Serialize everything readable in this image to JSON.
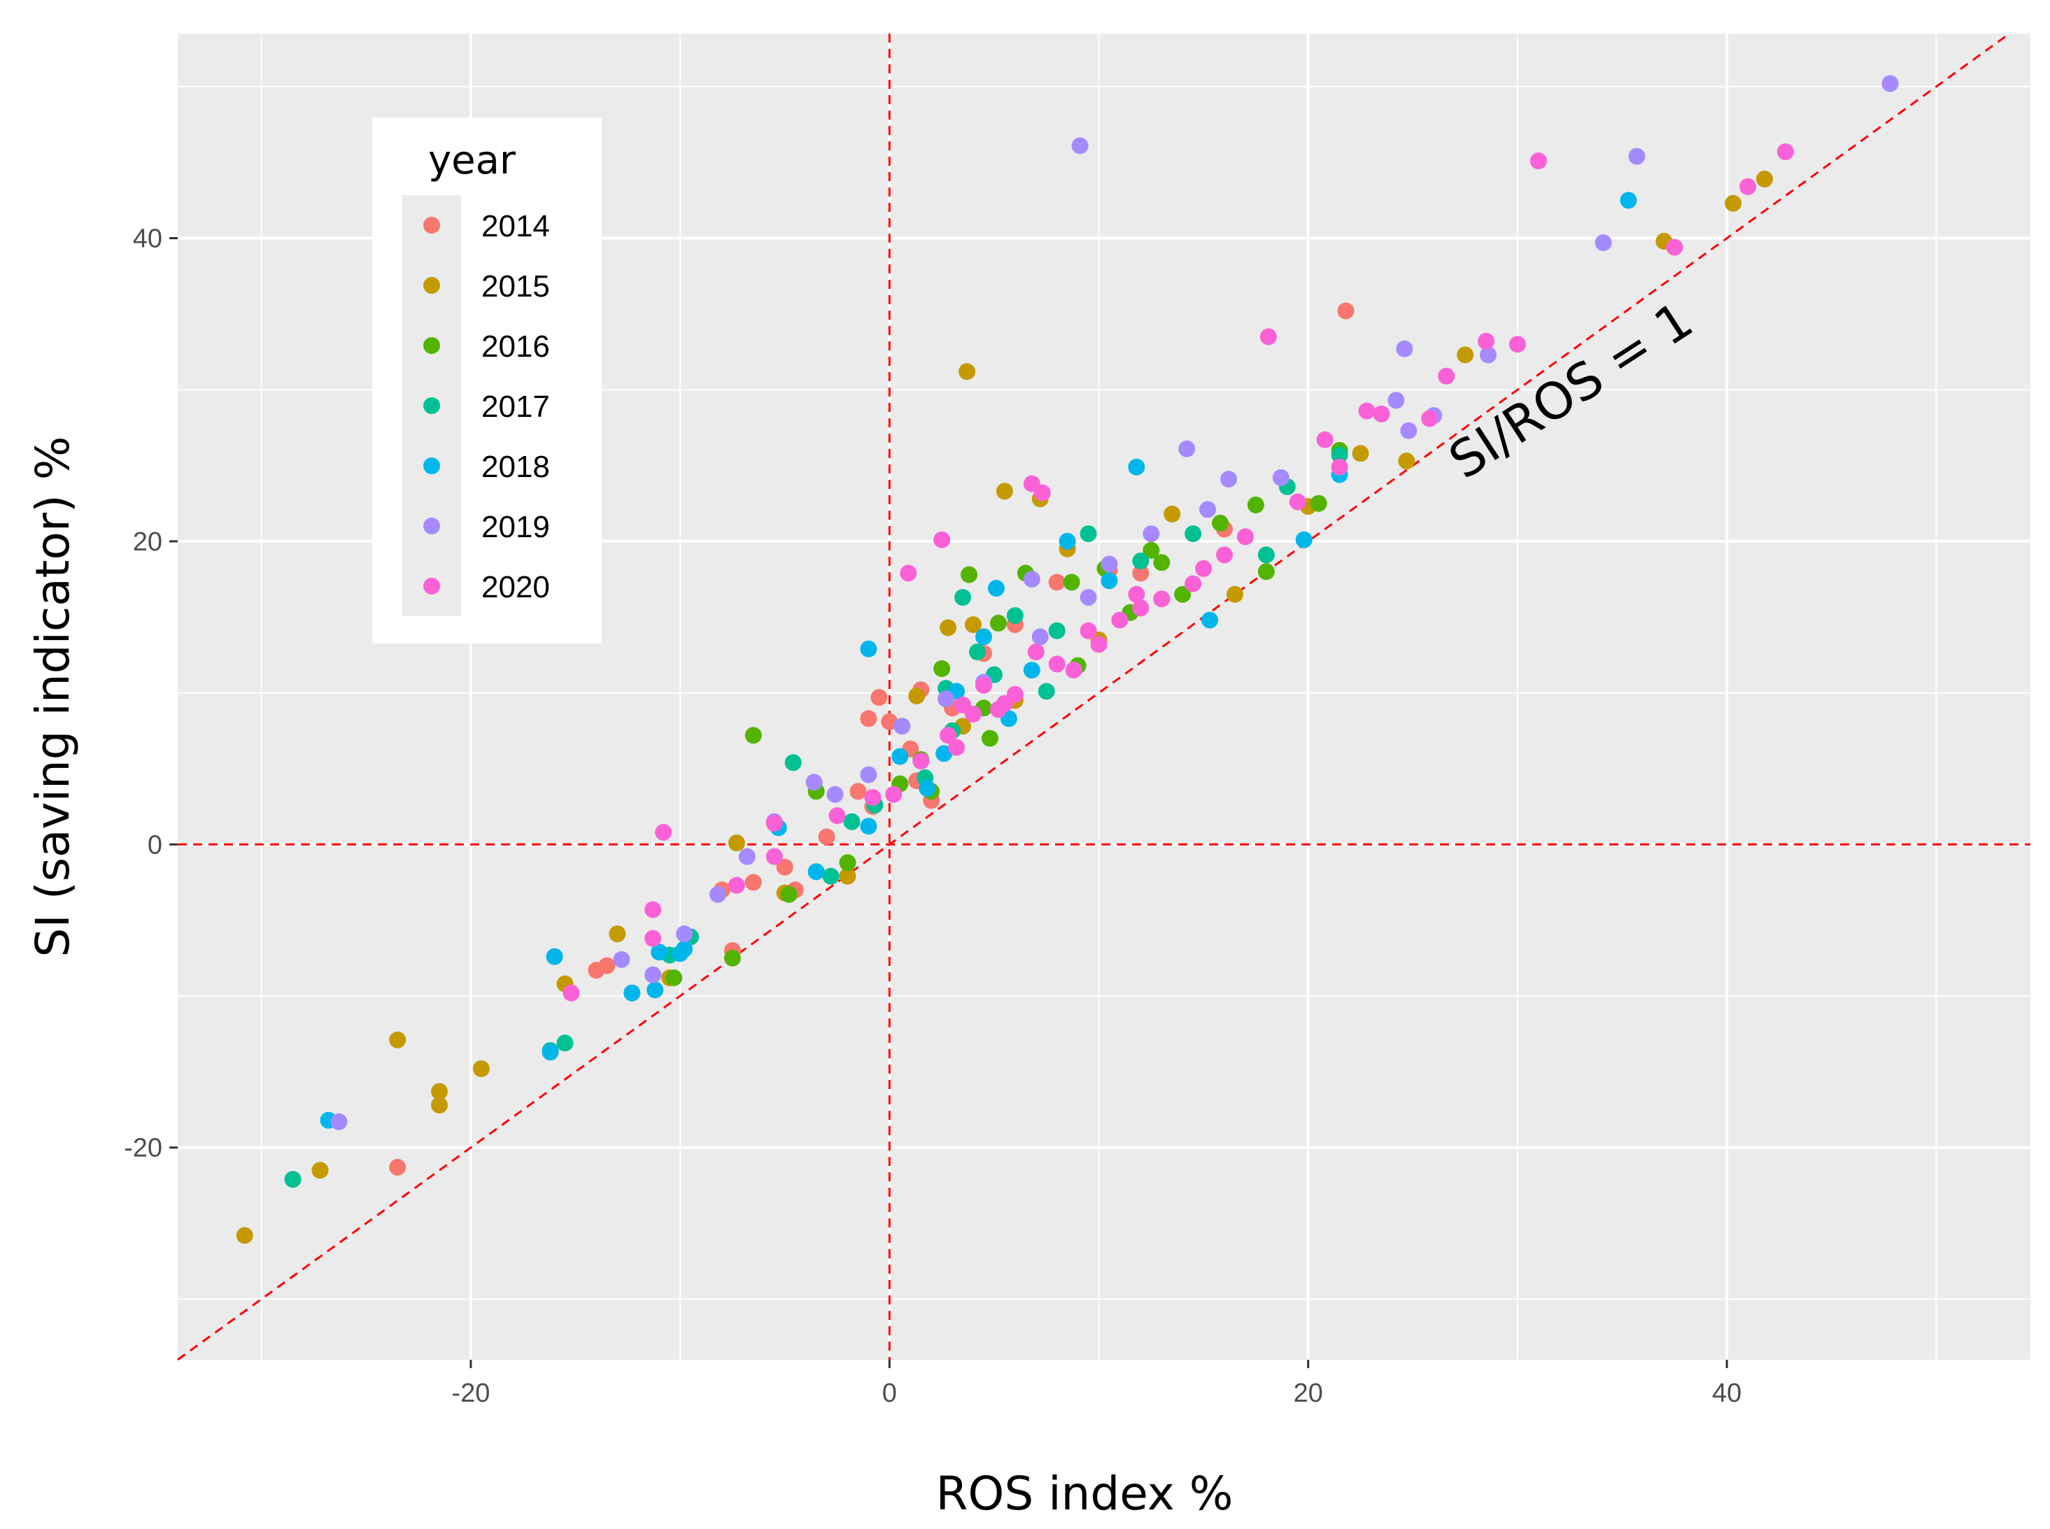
{
  "chart_data": {
    "type": "scatter",
    "title": "",
    "xlabel": "ROS index %",
    "ylabel": "SI (saving indicator) %",
    "xlim": [
      -34,
      54.5
    ],
    "ylim": [
      -34,
      53.5
    ],
    "x_ticks": [
      -20,
      0,
      20,
      40
    ],
    "y_ticks": [
      -20,
      0,
      20,
      40
    ],
    "x_tick_labels": [
      "-20",
      "0",
      "20",
      "40"
    ],
    "y_tick_labels": [
      "-20",
      "0",
      "20",
      "40"
    ],
    "grid": true,
    "legend": {
      "title": "year",
      "position": "top-left-inside"
    },
    "reference_lines": [
      {
        "kind": "vertical",
        "x": 0,
        "color": "#ff0000",
        "style": "dashed"
      },
      {
        "kind": "horizontal",
        "y": 0,
        "color": "#ff0000",
        "style": "dashed"
      },
      {
        "kind": "identity",
        "slope": 1,
        "intercept": 0,
        "color": "#ff0000",
        "style": "dashed"
      }
    ],
    "annotation": {
      "text": "SI/ROS = 1",
      "x": 33,
      "y": 29,
      "angle_deg": -33
    },
    "series": [
      {
        "name": "2014",
        "color": "#F8766D",
        "x": [
          21.8,
          -23.5,
          -14,
          -13.5,
          -8,
          -7.5,
          -6.5,
          -5,
          -4.5,
          -3,
          -1.5,
          -1,
          -0.5,
          0,
          1,
          1.5,
          2,
          3,
          4.5,
          6,
          8,
          10.5,
          12,
          16,
          1.3,
          -0.8
        ],
        "y": [
          35.2,
          -21.3,
          -8.3,
          -8,
          -3,
          -7,
          -2.5,
          -1.5,
          -3,
          0.5,
          3.5,
          8.3,
          9.7,
          8.1,
          6.3,
          10.2,
          2.9,
          9,
          12.6,
          14.5,
          17.3,
          18.1,
          17.9,
          20.8,
          4.2,
          2.5
        ]
      },
      {
        "name": "2015",
        "color": "#C49A00",
        "x": [
          -30.8,
          -27.2,
          -23.5,
          -21.5,
          -21.5,
          -19.5,
          -15.5,
          -13,
          -10.5,
          -7.3,
          -5,
          -2,
          1.3,
          2.8,
          3.7,
          4,
          5.5,
          7.2,
          8.5,
          13.5,
          16.5,
          20,
          22.5,
          24.7,
          27.5,
          37,
          40.3,
          41.8,
          10,
          3.5,
          6
        ],
        "y": [
          -25.8,
          -21.5,
          -12.9,
          -16.3,
          -17.2,
          -14.8,
          -9.2,
          -5.9,
          -8.8,
          0.1,
          -3.2,
          -2.1,
          9.8,
          14.3,
          31.2,
          14.5,
          23.3,
          22.8,
          19.5,
          21.8,
          16.5,
          22.3,
          25.8,
          25.3,
          32.3,
          39.8,
          42.3,
          43.9,
          13.5,
          7.8,
          9.5
        ]
      },
      {
        "name": "2016",
        "color": "#53B400",
        "x": [
          -10.3,
          -7.5,
          -6.5,
          -4.8,
          -3.5,
          -2,
          0.5,
          1.5,
          2.5,
          3.8,
          4.5,
          5.2,
          6.5,
          8.7,
          10.3,
          12.5,
          15.8,
          17.5,
          18,
          20.5,
          21.5,
          9,
          4.8,
          11.5,
          14,
          13,
          2
        ],
        "y": [
          -8.8,
          -7.5,
          7.2,
          -3.3,
          3.5,
          -1.2,
          4,
          5.6,
          11.6,
          17.8,
          9,
          14.6,
          17.9,
          17.3,
          18.2,
          19.4,
          21.2,
          22.4,
          18,
          22.5,
          26,
          11.8,
          7,
          15.3,
          16.5,
          18.6,
          3.5
        ]
      },
      {
        "name": "2017",
        "color": "#00C094",
        "x": [
          -28.5,
          -15.5,
          -16.2,
          -10.5,
          -9.5,
          -4.6,
          -2.8,
          -1.8,
          -0.7,
          1.7,
          2.7,
          3.5,
          4.2,
          5,
          6,
          7.5,
          9.5,
          12,
          14.5,
          18,
          19,
          21.5,
          8,
          3
        ],
        "y": [
          -22.1,
          -13.1,
          -13.6,
          -7.3,
          -6.1,
          5.4,
          -2.1,
          1.5,
          2.6,
          4.4,
          10.3,
          16.3,
          12.7,
          11.2,
          15.1,
          10.1,
          20.5,
          18.7,
          20.5,
          19.1,
          23.6,
          25.7,
          14.1,
          7.5
        ]
      },
      {
        "name": "2018",
        "color": "#00B6EB",
        "x": [
          -26.8,
          -16,
          -16.2,
          -12.3,
          -11.2,
          -11,
          -10,
          -9.8,
          -5.3,
          -3.5,
          -1,
          -1,
          0.5,
          1.8,
          3.2,
          4.5,
          5.1,
          6.8,
          8.5,
          10.5,
          11.8,
          15.3,
          19.8,
          21.5,
          35.3,
          5.7,
          2.6
        ],
        "y": [
          -18.2,
          -7.4,
          -13.7,
          -9.8,
          -9.6,
          -7.1,
          -7.2,
          -6.9,
          1.1,
          -1.8,
          12.9,
          1.2,
          5.8,
          3.7,
          10.1,
          13.7,
          16.9,
          11.5,
          20,
          17.4,
          24.9,
          14.8,
          20.1,
          24.4,
          42.5,
          8.3,
          6
        ]
      },
      {
        "name": "2019",
        "color": "#A58AFF",
        "x": [
          47.8,
          9.1,
          35.7,
          34.1,
          28.6,
          24.6,
          24.8,
          26,
          24.2,
          14.2,
          15.2,
          16.2,
          18.7,
          7.2,
          4.5,
          2.7,
          0.6,
          -1,
          -2.6,
          -3.6,
          -5.5,
          -6.8,
          -8.2,
          -9.8,
          -11.3,
          -12.8,
          -26.3,
          10.5,
          6.8,
          9.5,
          12.5
        ],
        "y": [
          50.2,
          46.1,
          45.4,
          39.7,
          32.3,
          32.7,
          27.3,
          28.3,
          29.3,
          26.1,
          22.1,
          24.1,
          24.2,
          13.7,
          10.7,
          9.6,
          7.8,
          4.6,
          3.3,
          4.1,
          1.5,
          -0.8,
          -3.3,
          -5.9,
          -8.6,
          -7.6,
          -18.3,
          18.5,
          17.5,
          16.3,
          20.5
        ]
      },
      {
        "name": "2020",
        "color": "#FB61D7",
        "x": [
          42.8,
          41,
          37.5,
          31,
          30,
          28.5,
          26.6,
          25.8,
          22.8,
          23.5,
          20.8,
          21.5,
          18.1,
          6.8,
          7.3,
          2.5,
          0.9,
          -0.8,
          -10.8,
          -11.3,
          -11.3,
          -15.2,
          -7.3,
          -5.5,
          -5.5,
          3.5,
          4.5,
          5.5,
          8,
          9.5,
          11,
          13,
          15,
          17,
          1.5,
          2.8,
          4,
          6,
          7,
          10,
          12,
          14.5,
          16,
          0.2,
          -2.5,
          3.2,
          5.2,
          8.8,
          11.8,
          19.5
        ],
        "y": [
          45.7,
          43.4,
          39.4,
          45.1,
          33,
          33.2,
          30.9,
          28.1,
          28.6,
          28.4,
          26.7,
          24.9,
          33.5,
          23.8,
          23.2,
          20.1,
          17.9,
          3.1,
          0.8,
          -4.3,
          -6.2,
          -9.8,
          -2.7,
          -0.8,
          1.4,
          9.2,
          10.5,
          9.3,
          11.9,
          14.1,
          14.8,
          16.2,
          18.2,
          20.3,
          5.5,
          7.2,
          8.6,
          9.9,
          12.7,
          13.2,
          15.6,
          17.2,
          19.1,
          3.3,
          1.9,
          6.4,
          8.9,
          11.5,
          16.5,
          22.6
        ]
      }
    ]
  }
}
